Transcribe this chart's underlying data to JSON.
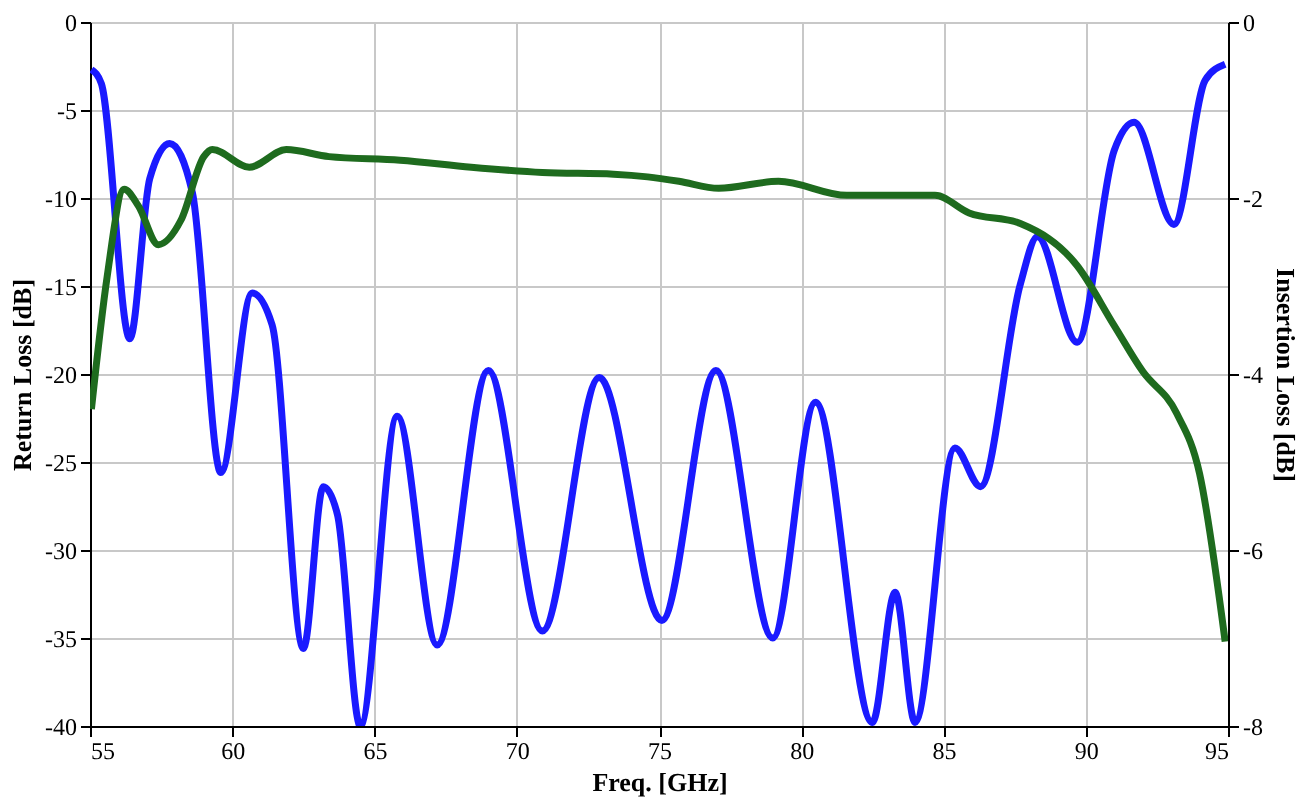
{
  "chart_data": {
    "type": "line",
    "xlabel": "Freq. [GHz]",
    "ylabel": "Return Loss [dB]",
    "y2label": "Insertion Loss [dB]",
    "xlim": [
      55,
      95
    ],
    "xticks": [
      55,
      60,
      65,
      70,
      75,
      80,
      85,
      90,
      95
    ],
    "ylim": [
      -40,
      0
    ],
    "yticks": [
      -40,
      -35,
      -30,
      -25,
      -20,
      -15,
      -10,
      -5,
      0
    ],
    "y2lim": [
      -8,
      0
    ],
    "y2ticks": [
      -8,
      -6,
      -4,
      -2,
      0
    ],
    "grid": true,
    "marker": "none",
    "line_style": "solid",
    "series": [
      {
        "color": "#1a1aff",
        "x": [
          55.05,
          55.4,
          56.4,
          57.1,
          57.8,
          58.6,
          59.6,
          60.7,
          61.4,
          62.5,
          63.2,
          63.7,
          64.5,
          65.8,
          67.2,
          69.0,
          70.9,
          72.9,
          75.1,
          77.0,
          79.0,
          80.5,
          82.5,
          83.3,
          84.0,
          85.4,
          86.3,
          87.7,
          88.3,
          89.7,
          91.0,
          91.7,
          93.1,
          94.2,
          94.9
        ],
        "values": [
          -2.7,
          -3.5,
          -18,
          -8.9,
          -6.9,
          -9.7,
          -25.6,
          -15.4,
          -17.2,
          -35.6,
          -26.4,
          -28,
          -40,
          -22.4,
          -35.4,
          -19.8,
          -34.6,
          -20.2,
          -34.0,
          -19.8,
          -35.0,
          -21.6,
          -39.8,
          -32.4,
          -39.8,
          -24.2,
          -26.4,
          -14.9,
          -12.2,
          -18.2,
          -7.3,
          -5.7,
          -11.5,
          -3.3,
          -2.4
        ]
      },
      {
        "color": "#1e6b1e",
        "axis": "y2",
        "x": [
          55.05,
          55.6,
          56.2,
          56.7,
          57.4,
          58.2,
          59.0,
          59.3,
          60.6,
          61.9,
          63.4,
          65.9,
          68.4,
          70.9,
          73.4,
          74.6,
          75.7,
          77.1,
          79.2,
          81.6,
          84.7,
          85.9,
          87.7,
          89.7,
          91.0,
          92.0,
          93.2,
          94.0,
          94.9
        ],
        "values": [
          -4.4,
          -2.9,
          -1.9,
          -2.09,
          -2.53,
          -2.25,
          -1.53,
          -1.45,
          -1.65,
          -1.45,
          -1.53,
          -1.57,
          -1.65,
          -1.71,
          -1.73,
          -1.76,
          -1.81,
          -1.89,
          -1.81,
          -1.97,
          -1.97,
          -2.17,
          -2.29,
          -2.77,
          -3.45,
          -3.97,
          -4.45,
          -5.13,
          -7.04
        ]
      }
    ]
  }
}
